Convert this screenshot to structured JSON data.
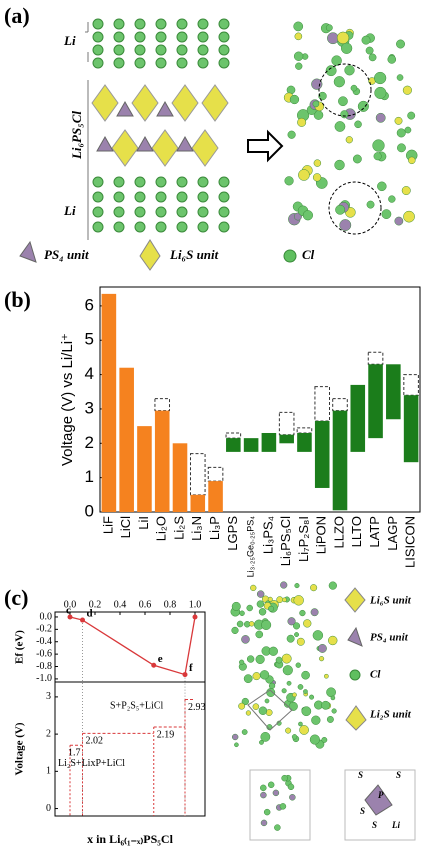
{
  "panel_labels": [
    "(a)",
    "(b)",
    "(c)"
  ],
  "panel_a": {
    "layer_labels": [
      "Li",
      "Li₆PS₅Cl",
      "Li"
    ],
    "legend": [
      "PS₄ unit",
      "Li₆S unit",
      "Cl"
    ]
  },
  "panel_c_structures": {
    "legend": [
      "Li₆S unit",
      "PS₄ unit",
      "Cl",
      "Li₂S unit"
    ],
    "atom_labels": [
      "S",
      "S",
      "P",
      "S",
      "S",
      "Li"
    ]
  },
  "chart_data": [
    {
      "type": "floating_bar",
      "y_label": "Voltage (V) vs Li/Li⁺",
      "categories": [
        "LiF",
        "LiCl",
        "LiI",
        "Li₂O",
        "Li₂S",
        "Li₃N",
        "Li₃P",
        "LGPS",
        "Li₃.₂₅Ge₀.₂₅PS₄",
        "Li₃PS₄",
        "Li₆PS₅Cl",
        "Li₇P₂S₈I",
        "LiPON",
        "LLZO",
        "LLTO",
        "LATP",
        "LAGP",
        "LISICON"
      ],
      "low": [
        0,
        0,
        0,
        0,
        0,
        0,
        0,
        1.75,
        1.75,
        1.75,
        2.0,
        1.75,
        0.7,
        0.05,
        1.75,
        2.15,
        2.7,
        1.45
      ],
      "high": [
        6.35,
        4.2,
        2.5,
        2.95,
        2.0,
        0.5,
        0.9,
        2.15,
        2.15,
        2.3,
        2.25,
        2.3,
        2.65,
        2.95,
        3.7,
        4.3,
        4.3,
        3.4
      ],
      "dashed_high": [
        null,
        null,
        null,
        3.3,
        null,
        1.7,
        1.3,
        2.3,
        null,
        null,
        2.9,
        2.45,
        3.65,
        3.3,
        null,
        4.65,
        null,
        4.0
      ],
      "colors": [
        "#f5821f",
        "#f5821f",
        "#f5821f",
        "#f5821f",
        "#f5821f",
        "#f5821f",
        "#f5821f",
        "#1b7d1b",
        "#1b7d1b",
        "#1b7d1b",
        "#1b7d1b",
        "#1b7d1b",
        "#1b7d1b",
        "#1b7d1b",
        "#1b7d1b",
        "#1b7d1b",
        "#1b7d1b",
        "#1b7d1b"
      ],
      "ylim": [
        0,
        6.55
      ],
      "yticks": [
        0,
        1,
        2,
        3,
        4,
        5,
        6
      ]
    },
    {
      "type": "line",
      "y_label": "Ef (eV)",
      "color": "#d9383a",
      "x": [
        0,
        0.1,
        0.67,
        0.92,
        1.0
      ],
      "values": [
        0,
        -0.05,
        -0.78,
        -0.93,
        0
      ],
      "point_labels": [
        "c",
        "d",
        "e",
        "f",
        null
      ],
      "xlim": [
        -0.12,
        1.08
      ],
      "xticks": [
        {
          "value": 0,
          "label": "0.0"
        },
        0.2,
        0.4,
        0.6,
        0.8,
        {
          "value": 1,
          "label": "1.0"
        }
      ],
      "ylim": [
        -1.05,
        0.08
      ],
      "yticks": [
        {
          "value": 0,
          "label": "0.0"
        },
        -0.2,
        -0.4,
        -0.6,
        -0.8,
        {
          "value": -1,
          "label": "-1.0"
        }
      ]
    },
    {
      "type": "step",
      "y_label": "Voltage (V)",
      "x_label": "x in Li₆₍₁₋ₓ₎PS₅Cl",
      "color": "#d9383a",
      "x": [
        0.0,
        0.1,
        0.67,
        0.92
      ],
      "values": [
        1.7,
        2.02,
        2.19,
        2.93
      ],
      "annotations": [
        "S+P₂S₅+LiCl",
        "Li₂S+LixP+LiCl"
      ],
      "xlim": [
        -0.12,
        1.08
      ],
      "ylim": [
        -0.2,
        3.4
      ],
      "yticks": [
        0,
        1,
        2,
        3
      ]
    }
  ]
}
